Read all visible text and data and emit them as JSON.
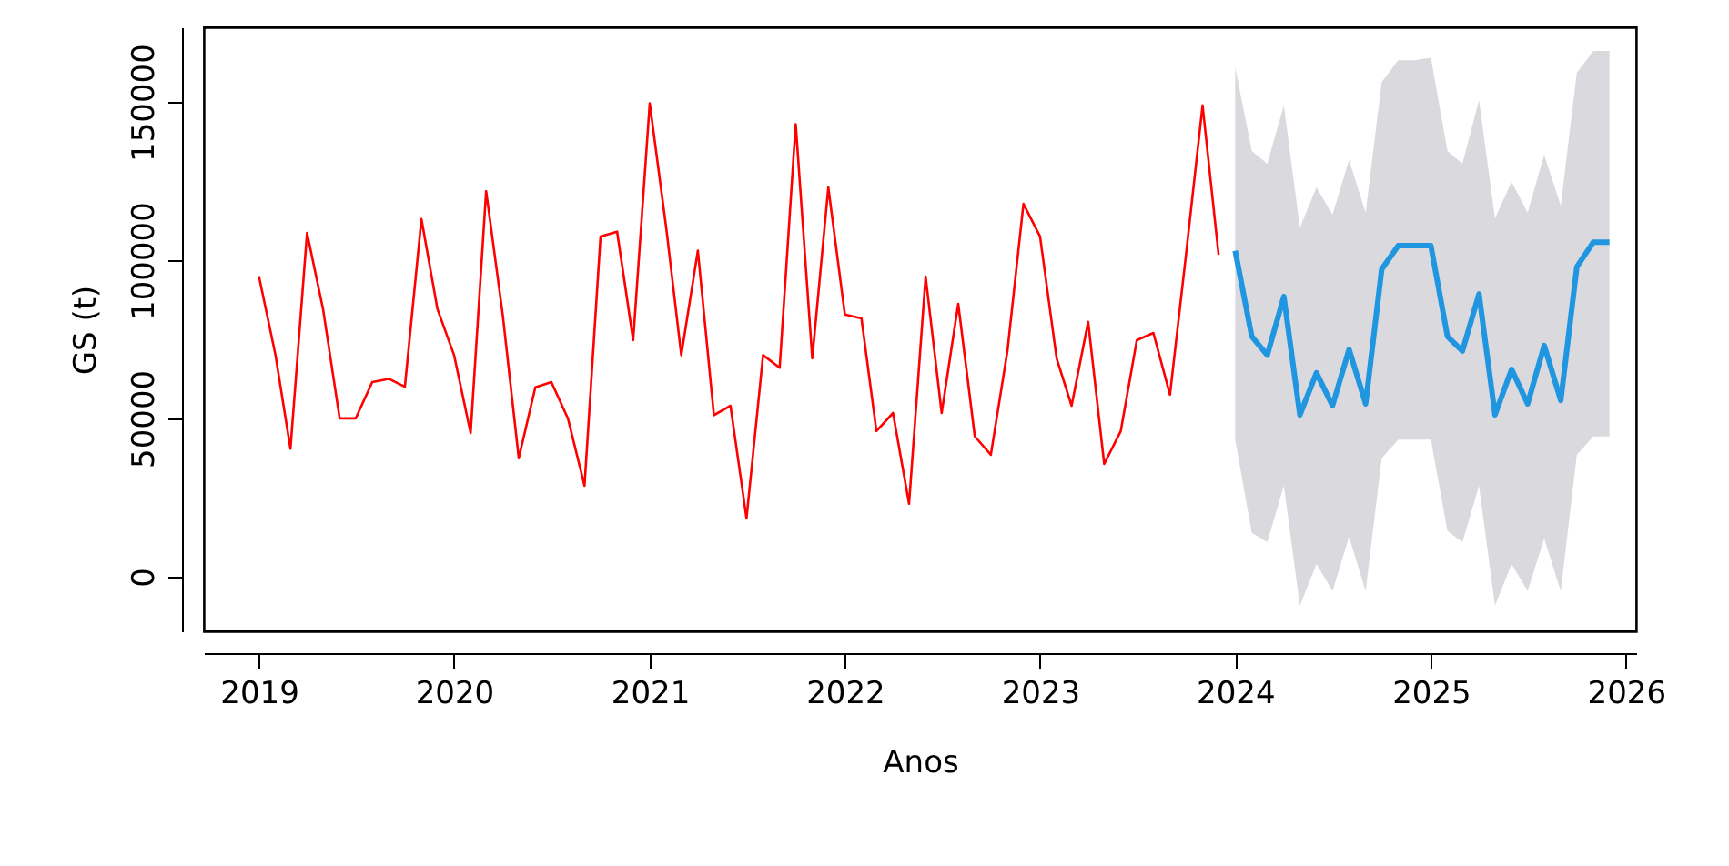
{
  "chart_data": {
    "type": "line",
    "xlabel": "Anos",
    "ylabel": "GS (t)",
    "xlim": [
      "2018-09-20",
      "2026-01-20"
    ],
    "xticks": [
      "2019",
      "2020",
      "2021",
      "2022",
      "2023",
      "2024",
      "2025",
      "2026"
    ],
    "ylim": [
      -17300,
      173600
    ],
    "yticks": [
      0,
      50000,
      100000,
      150000
    ],
    "grid": false,
    "line_style": "solid",
    "marker": "none",
    "series": [
      {
        "color": "#ff0000",
        "x": [
          "2019-01",
          "2019-02",
          "2019-03",
          "2019-04",
          "2019-05",
          "2019-06",
          "2019-07",
          "2019-08",
          "2019-09",
          "2019-10",
          "2019-11",
          "2019-12",
          "2020-01",
          "2020-02",
          "2020-03",
          "2020-04",
          "2020-05",
          "2020-06",
          "2020-07",
          "2020-08",
          "2020-09",
          "2020-10",
          "2020-11",
          "2020-12",
          "2021-01",
          "2021-02",
          "2021-03",
          "2021-04",
          "2021-05",
          "2021-06",
          "2021-07",
          "2021-08",
          "2021-09",
          "2021-10",
          "2021-11",
          "2021-12",
          "2022-01",
          "2022-02",
          "2022-03",
          "2022-04",
          "2022-05",
          "2022-06",
          "2022-07",
          "2022-08",
          "2022-09",
          "2022-10",
          "2022-11",
          "2022-12",
          "2023-01",
          "2023-02",
          "2023-03",
          "2023-04",
          "2023-05",
          "2023-06",
          "2023-07",
          "2023-08",
          "2023-09",
          "2023-10",
          "2023-11",
          "2023-12"
        ],
        "values": [
          95000,
          70000,
          40400,
          108600,
          84500,
          50000,
          50000,
          61500,
          62500,
          60000,
          113000,
          84500,
          70000,
          45400,
          121800,
          82800,
          37400,
          59800,
          61500,
          50000,
          28700,
          107500,
          109000,
          74700,
          149600,
          110000,
          70000,
          103000,
          51000,
          54000,
          18400,
          70000,
          66000,
          143000,
          69000,
          123000,
          82800,
          81600,
          46000,
          51700,
          23000,
          94800,
          51700,
          86200,
          44300,
          38500,
          71300,
          117800,
          107500,
          69000,
          54000,
          80500,
          35600,
          46000,
          74700,
          77000,
          57500,
          101700,
          148900,
          101700
        ]
      },
      {
        "color": "#2196e0",
        "x": [
          "2024-01",
          "2024-02",
          "2024-03",
          "2024-04",
          "2024-05",
          "2024-06",
          "2024-07",
          "2024-08",
          "2024-09",
          "2024-10",
          "2024-11",
          "2024-12",
          "2025-01",
          "2025-02",
          "2025-03",
          "2025-04",
          "2025-05",
          "2025-06",
          "2025-07",
          "2025-08",
          "2025-09",
          "2025-10",
          "2025-11",
          "2025-12"
        ],
        "values": [
          103000,
          75900,
          70000,
          88500,
          51100,
          64400,
          54000,
          71800,
          54600,
          97100,
          104600,
          104600,
          104600,
          75900,
          71300,
          89300,
          51100,
          65500,
          54600,
          73000,
          55700,
          97900,
          105700,
          105700
        ],
        "lower": [
          43300,
          13800,
          10900,
          28700,
          -9200,
          4000,
          -4600,
          12600,
          -4600,
          37400,
          43300,
          43300,
          43300,
          14500,
          10900,
          28700,
          -9200,
          4000,
          -4600,
          12000,
          -4600,
          38500,
          44300,
          44300
        ],
        "upper": [
          161000,
          134500,
          130500,
          148900,
          110300,
          123000,
          114400,
          131600,
          115000,
          156300,
          163200,
          163200,
          164000,
          134500,
          130500,
          150600,
          113200,
          124700,
          115000,
          133300,
          117200,
          159200,
          166100,
          166100
        ]
      }
    ]
  }
}
